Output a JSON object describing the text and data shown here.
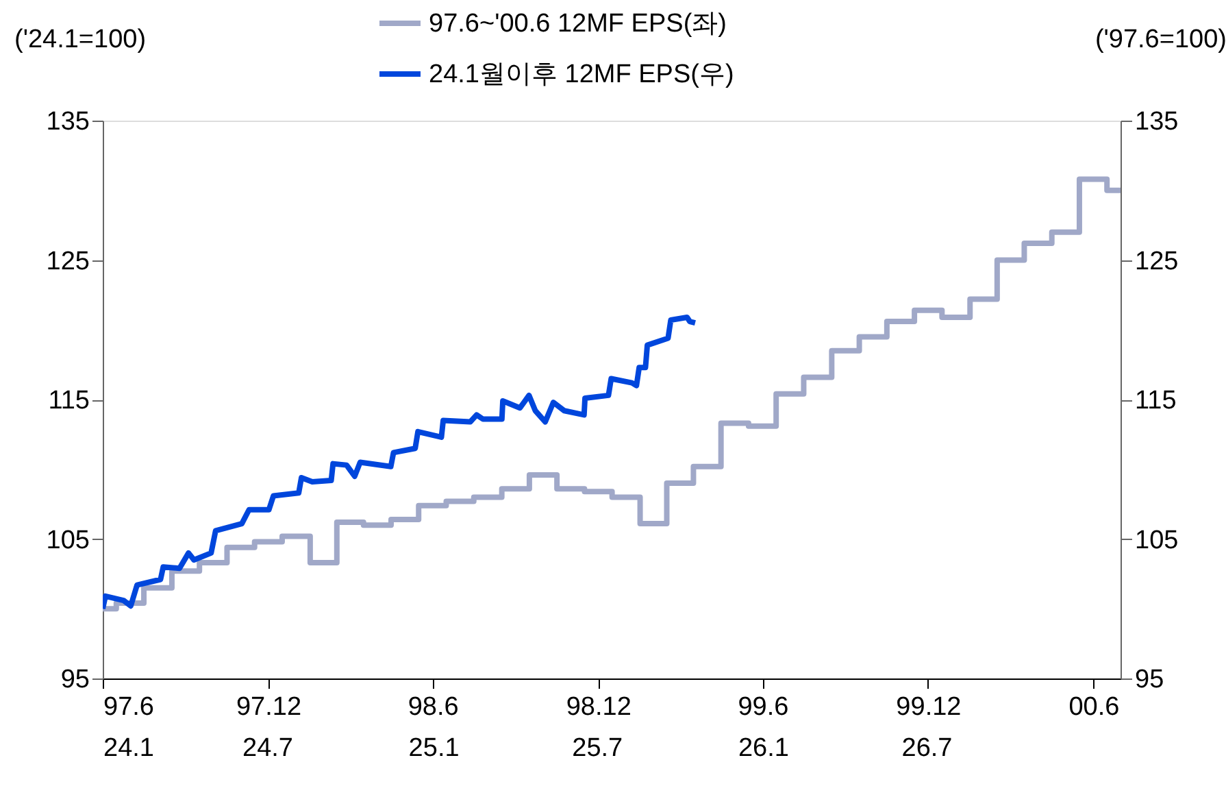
{
  "chart_data": {
    "type": "step",
    "ylabel": "('24.1=100)",
    "y2label": "('97.6=100)",
    "xlim": [
      "1997-06",
      "2000-07"
    ],
    "xticks": [
      {
        "value": "1997-06",
        "label": "97.6"
      },
      {
        "value": "1997-12",
        "label": "97.12"
      },
      {
        "value": "1998-06",
        "label": "98.6"
      },
      {
        "value": "1998-12",
        "label": "98.12"
      },
      {
        "value": "1999-06",
        "label": "99.6"
      },
      {
        "value": "1999-12",
        "label": "99.12"
      },
      {
        "value": "2000-06",
        "label": "00.6"
      }
    ],
    "x2lim": [
      "2024-01",
      "2027-02"
    ],
    "x2ticks": [
      {
        "value": "2024-01",
        "label": "24.1"
      },
      {
        "value": "2024-07",
        "label": "24.7"
      },
      {
        "value": "2025-01",
        "label": "25.1"
      },
      {
        "value": "2025-07",
        "label": "25.7"
      },
      {
        "value": "2026-01",
        "label": "26.1"
      },
      {
        "value": "2026-07",
        "label": "26.7"
      }
    ],
    "ylim": [
      95,
      135
    ],
    "yticks": [
      95,
      105,
      115,
      125,
      135
    ],
    "y2lim": [
      95,
      135
    ],
    "y2ticks": [
      95,
      105,
      115,
      125,
      135
    ],
    "legend": "top",
    "grid": false,
    "series": [
      {
        "name": "97.6~'00.6 12MF EPS(좌)",
        "color": "#a0a8c8",
        "x": [
          "1997-06",
          "1997-07",
          "1997-08",
          "1997-09",
          "1997-10",
          "1997-11",
          "1997-12",
          "1998-01",
          "1998-02",
          "1998-03",
          "1998-04",
          "1998-05",
          "1998-06",
          "1998-07",
          "1998-08",
          "1998-09",
          "1998-10",
          "1998-11",
          "1998-12",
          "1999-01",
          "1999-02",
          "1999-03",
          "1999-04",
          "1999-05",
          "1999-06",
          "1999-07",
          "1999-08",
          "1999-09",
          "1999-10",
          "1999-11",
          "1999-12",
          "2000-01",
          "2000-02",
          "2000-03",
          "2000-04",
          "2000-05",
          "2000-06",
          "2000-07"
        ],
        "values": [
          100.0,
          100.4,
          101.5,
          102.7,
          103.3,
          104.4,
          104.8,
          105.2,
          103.3,
          106.2,
          106.0,
          106.4,
          107.4,
          107.7,
          108.0,
          108.6,
          109.6,
          108.6,
          108.4,
          108.0,
          106.1,
          109.0,
          110.2,
          113.3,
          113.1,
          115.4,
          116.6,
          118.5,
          119.5,
          120.6,
          121.4,
          120.9,
          122.2,
          125.0,
          126.2,
          127.0,
          130.8,
          130.0
        ]
      },
      {
        "name": "24.1월이후 12MF EPS(우)",
        "color": "#0046dc",
        "type": "line",
        "axis": "x2",
        "x": [
          "2024-01-01",
          "2024-01-04",
          "2024-01-24",
          "2024-02-01",
          "2024-02-08",
          "2024-03-05",
          "2024-03-08",
          "2024-03-26",
          "2024-04-05",
          "2024-04-11",
          "2024-04-30",
          "2024-05-05",
          "2024-06-03",
          "2024-06-11",
          "2024-07-03",
          "2024-07-08",
          "2024-08-05",
          "2024-08-08",
          "2024-08-20",
          "2024-09-10",
          "2024-09-12",
          "2024-09-27",
          "2024-10-06",
          "2024-10-12",
          "2024-11-15",
          "2024-11-18",
          "2024-12-12",
          "2024-12-15",
          "2025-01-10",
          "2025-01-12",
          "2025-02-11",
          "2025-02-18",
          "2025-02-25",
          "2025-03-18",
          "2025-03-19",
          "2025-04-07",
          "2025-04-17",
          "2025-04-24",
          "2025-05-05",
          "2025-05-14",
          "2025-05-26",
          "2025-06-17",
          "2025-06-18",
          "2025-07-14",
          "2025-07-17",
          "2025-08-09",
          "2025-08-14",
          "2025-08-17",
          "2025-08-24",
          "2025-08-26",
          "2025-09-18",
          "2025-09-21",
          "2025-10-09",
          "2025-10-12",
          "2025-10-18"
        ],
        "values": [
          100.0,
          100.9,
          100.6,
          100.2,
          101.7,
          102.1,
          103.0,
          102.9,
          104.0,
          103.5,
          104.0,
          105.6,
          106.1,
          107.1,
          107.1,
          108.1,
          108.3,
          109.4,
          109.1,
          109.2,
          110.4,
          110.3,
          109.5,
          110.5,
          110.2,
          111.2,
          111.5,
          112.7,
          112.3,
          113.5,
          113.4,
          113.9,
          113.6,
          113.6,
          114.9,
          114.4,
          115.3,
          114.2,
          113.4,
          114.8,
          114.2,
          113.9,
          115.1,
          115.3,
          116.5,
          116.2,
          116.0,
          117.3,
          117.3,
          118.9,
          119.4,
          120.7,
          120.9,
          120.6,
          120.5
        ]
      }
    ]
  }
}
